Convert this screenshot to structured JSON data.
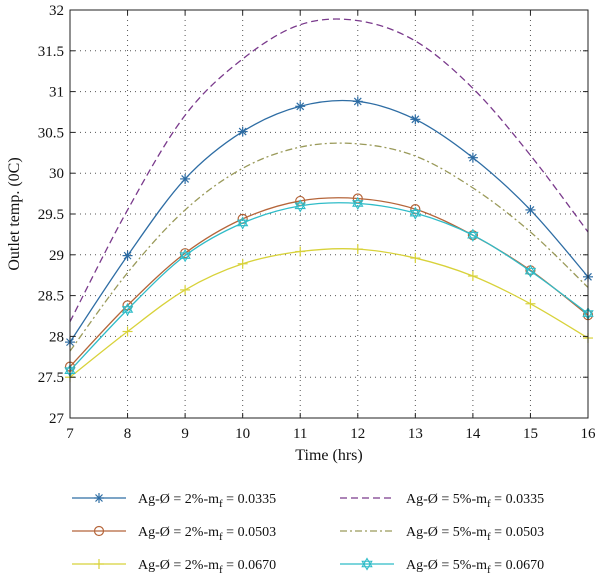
{
  "chart_data": {
    "type": "line",
    "xlabel": "Time (hrs)",
    "ylabel": "Outlet temp. (0C)",
    "xlim": [
      7,
      16
    ],
    "ylim": [
      27,
      32
    ],
    "x_ticks": [
      7,
      8,
      9,
      10,
      11,
      12,
      13,
      14,
      15,
      16
    ],
    "y_ticks": [
      27,
      27.5,
      28,
      28.5,
      29,
      29.5,
      30,
      30.5,
      31,
      31.5,
      32
    ],
    "y_tick_labels": [
      "27",
      "27.5",
      "28",
      "28.5",
      "29",
      "29.5",
      "30",
      "30.5",
      "31",
      "31.5",
      "32"
    ],
    "grid": true,
    "legend_position": "bottom, outside plot, two columns",
    "series": [
      {
        "name_prefix": "Ag-Ø = 2%-m",
        "name_sub": "f",
        "name_suffix": " = 0.0335",
        "color": "#2e6da4",
        "style": "solid",
        "marker": "asterisk",
        "x": [
          7,
          8,
          9,
          10,
          11,
          12,
          13,
          14,
          15,
          16
        ],
        "values": [
          27.93,
          28.99,
          29.93,
          30.51,
          30.82,
          30.88,
          30.66,
          30.19,
          29.55,
          28.73
        ]
      },
      {
        "name_prefix": "Ag-Ø = 5%-m",
        "name_sub": "f",
        "name_suffix": " = 0.0335",
        "color": "#7a3a8c",
        "style": "dashed",
        "marker": "none",
        "x": [
          7,
          8,
          9,
          10,
          11,
          12,
          13,
          14,
          15,
          16
        ],
        "values": [
          28.18,
          29.55,
          30.71,
          31.4,
          31.82,
          31.87,
          31.62,
          31.04,
          30.22,
          29.28
        ]
      },
      {
        "name_prefix": "Ag-Ø = 2%-m",
        "name_sub": "f",
        "name_suffix": " = 0.0503",
        "color": "#b5653a",
        "style": "solid",
        "marker": "circle",
        "x": [
          7,
          8,
          9,
          10,
          11,
          12,
          13,
          14,
          15,
          16
        ],
        "values": [
          27.63,
          28.38,
          29.02,
          29.44,
          29.66,
          29.69,
          29.56,
          29.24,
          28.81,
          28.26
        ]
      },
      {
        "name_prefix": "Ag-Ø = 5%-m",
        "name_sub": "f",
        "name_suffix": " = 0.0503",
        "color": "#9a9a5a",
        "style": "dashdot",
        "marker": "none",
        "x": [
          7,
          8,
          9,
          10,
          11,
          12,
          13,
          14,
          15,
          16
        ],
        "values": [
          27.82,
          28.78,
          29.55,
          30.06,
          30.32,
          30.36,
          30.21,
          29.82,
          29.28,
          28.6
        ]
      },
      {
        "name_prefix": "Ag-Ø = 2%-m",
        "name_sub": "f",
        "name_suffix": " = 0.0670",
        "color": "#d8d23a",
        "style": "solid",
        "marker": "plus",
        "x": [
          7,
          8,
          9,
          10,
          11,
          12,
          13,
          14,
          15,
          16
        ],
        "values": [
          27.5,
          28.06,
          28.57,
          28.89,
          29.04,
          29.07,
          28.96,
          28.74,
          28.4,
          27.98
        ]
      },
      {
        "name_prefix": "Ag-Ø = 5%-m",
        "name_sub": "f",
        "name_suffix": " = 0.0670",
        "color": "#2fbcc8",
        "style": "solid",
        "marker": "hexagram",
        "x": [
          7,
          8,
          9,
          10,
          11,
          12,
          13,
          14,
          15,
          16
        ],
        "values": [
          27.58,
          28.33,
          28.99,
          29.39,
          29.6,
          29.63,
          29.51,
          29.24,
          28.8,
          28.28
        ]
      }
    ]
  }
}
